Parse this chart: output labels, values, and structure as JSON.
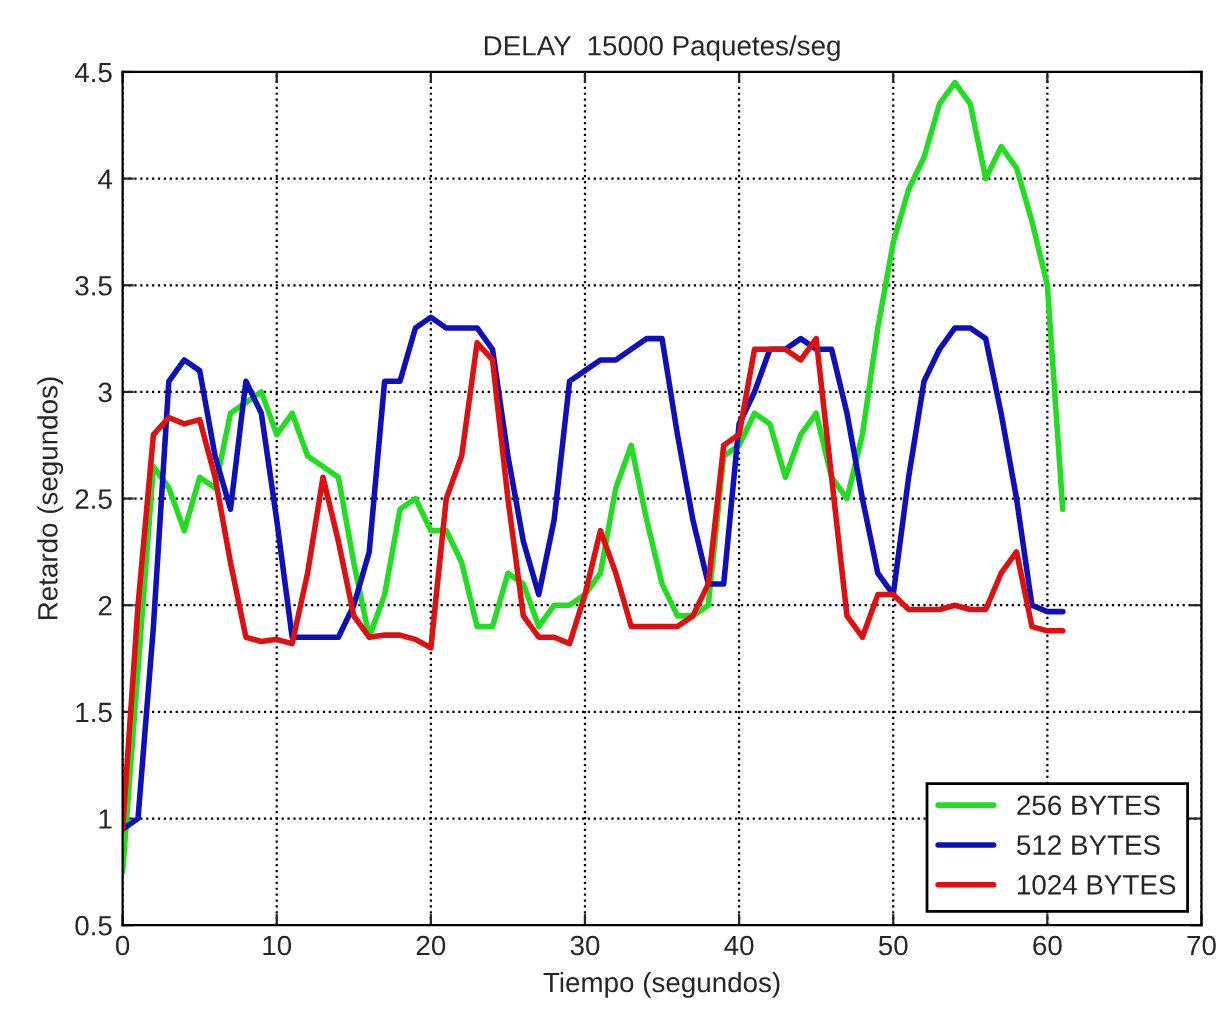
{
  "chart_data": {
    "type": "line",
    "title": "DELAY  15000 Paquetes/seg",
    "xlabel": "Tiempo (segundos)",
    "ylabel": "Retardo (segundos)",
    "x": [
      0,
      1,
      2,
      3,
      4,
      5,
      6,
      7,
      8,
      9,
      10,
      11,
      12,
      13,
      14,
      15,
      16,
      17,
      18,
      19,
      20,
      21,
      22,
      23,
      24,
      25,
      26,
      27,
      28,
      29,
      30,
      31,
      32,
      33,
      34,
      35,
      36,
      37,
      38,
      39,
      40,
      41,
      42,
      43,
      44,
      45,
      46,
      47,
      48,
      49,
      50,
      51,
      52,
      53,
      54,
      55,
      56,
      57,
      58,
      59,
      60,
      61
    ],
    "series": [
      {
        "name": "256 BYTES",
        "color": "#22dd22",
        "values": [
          0.75,
          1.7,
          2.65,
          2.55,
          2.35,
          2.6,
          2.55,
          2.9,
          2.95,
          3.0,
          2.8,
          2.9,
          2.7,
          2.65,
          2.6,
          2.2,
          1.85,
          2.05,
          2.45,
          2.5,
          2.35,
          2.35,
          2.2,
          1.9,
          1.9,
          2.15,
          2.1,
          1.9,
          2.0,
          2.0,
          2.05,
          2.15,
          2.55,
          2.75,
          2.4,
          2.1,
          1.95,
          1.95,
          2.0,
          2.7,
          2.75,
          2.9,
          2.85,
          2.6,
          2.8,
          2.9,
          2.6,
          2.5,
          2.8,
          3.3,
          3.7,
          3.95,
          4.1,
          4.35,
          4.45,
          4.35,
          4.0,
          4.15,
          4.05,
          3.8,
          3.5,
          2.45
        ]
      },
      {
        "name": "512 BYTES",
        "color": "#1010bb",
        "values": [
          0.95,
          1.0,
          1.9,
          3.05,
          3.15,
          3.1,
          2.7,
          2.45,
          3.05,
          2.9,
          2.4,
          1.85,
          1.85,
          1.85,
          1.85,
          2.0,
          2.25,
          3.05,
          3.05,
          3.3,
          3.35,
          3.3,
          3.3,
          3.3,
          3.2,
          2.7,
          2.3,
          2.05,
          2.4,
          3.05,
          3.1,
          3.15,
          3.15,
          3.2,
          3.25,
          3.25,
          2.8,
          2.4,
          2.1,
          2.1,
          2.85,
          3.0,
          3.2,
          3.2,
          3.25,
          3.2,
          3.2,
          2.9,
          2.5,
          2.15,
          2.05,
          2.6,
          3.05,
          3.2,
          3.3,
          3.3,
          3.25,
          2.9,
          2.5,
          2.0,
          1.97,
          1.97
        ]
      },
      {
        "name": "1024 BYTES",
        "color": "#dd1111",
        "values": [
          0.95,
          2.0,
          2.8,
          2.88,
          2.85,
          2.87,
          2.6,
          2.2,
          1.85,
          1.83,
          1.84,
          1.82,
          2.15,
          2.6,
          2.3,
          1.95,
          1.85,
          1.86,
          1.86,
          1.84,
          1.8,
          2.5,
          2.7,
          3.23,
          3.15,
          2.5,
          1.95,
          1.85,
          1.85,
          1.82,
          2.05,
          2.35,
          2.15,
          1.9,
          1.9,
          1.9,
          1.9,
          1.95,
          2.1,
          2.75,
          2.8,
          3.2,
          3.2,
          3.2,
          3.15,
          3.25,
          2.6,
          1.95,
          1.85,
          2.05,
          2.05,
          1.98,
          1.98,
          1.98,
          2.0,
          1.98,
          1.98,
          2.15,
          2.25,
          1.9,
          1.88,
          1.88
        ]
      }
    ],
    "xlim": [
      0,
      70
    ],
    "xticks": [
      0,
      10,
      20,
      30,
      40,
      50,
      60,
      70
    ],
    "ylim": [
      0.5,
      4.5
    ],
    "yticks": [
      0.5,
      1,
      1.5,
      2,
      2.5,
      3,
      3.5,
      4,
      4.5
    ],
    "grid": true,
    "legend": "bottom right",
    "line_style": "solid",
    "marker": "none"
  }
}
